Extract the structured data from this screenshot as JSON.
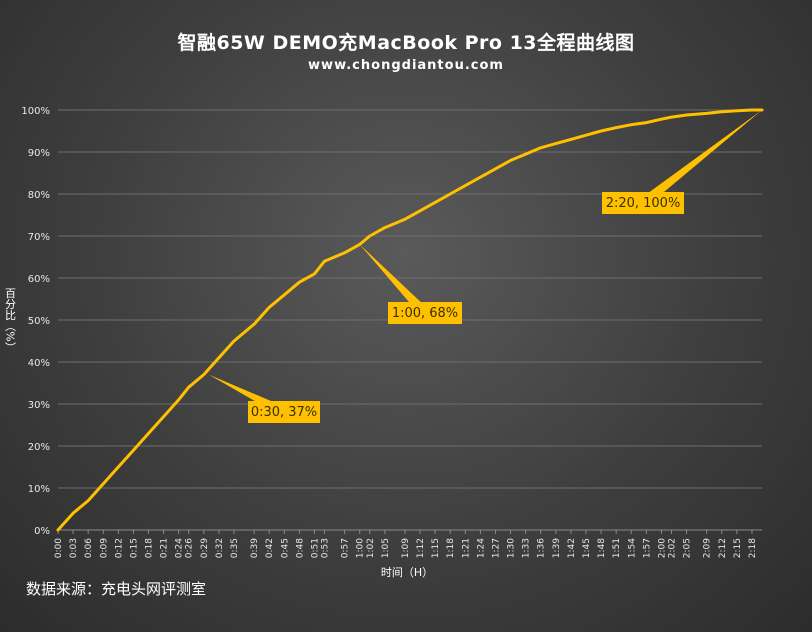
{
  "chart_data": {
    "type": "line",
    "title": "智融65W DEMO充MacBook Pro 13全程曲线图",
    "subtitle": "www.chongdiantou.com",
    "xlabel": "时间（H）",
    "ylabel": "百分比（%）",
    "ylim": [
      0,
      100
    ],
    "y_ticks": [
      "0%",
      "10%",
      "20%",
      "30%",
      "40%",
      "50%",
      "60%",
      "70%",
      "80%",
      "90%",
      "100%"
    ],
    "x_ticks": [
      "0:00",
      "0:03",
      "0:06",
      "0:09",
      "0:12",
      "0:15",
      "0:18",
      "0:21",
      "0:24",
      "0:26",
      "0:29",
      "0:32",
      "0:35",
      "0:39",
      "0:42",
      "0:45",
      "0:48",
      "0:51",
      "0:53",
      "0:57",
      "1:00",
      "1:02",
      "1:05",
      "1:09",
      "1:12",
      "1:15",
      "1:18",
      "1:21",
      "1:24",
      "1:27",
      "1:30",
      "1:33",
      "1:36",
      "1:39",
      "1:42",
      "1:45",
      "1:48",
      "1:51",
      "1:54",
      "1:57",
      "2:00",
      "2:02",
      "2:05",
      "2:09",
      "2:12",
      "2:15",
      "2:18"
    ],
    "grid": true,
    "series": [
      {
        "color": "#ffc000",
        "x": [
          "0:00",
          "0:03",
          "0:06",
          "0:09",
          "0:12",
          "0:15",
          "0:18",
          "0:21",
          "0:24",
          "0:26",
          "0:29",
          "0:32",
          "0:35",
          "0:39",
          "0:42",
          "0:45",
          "0:48",
          "0:51",
          "0:53",
          "0:57",
          "1:00",
          "1:02",
          "1:05",
          "1:09",
          "1:12",
          "1:15",
          "1:18",
          "1:21",
          "1:24",
          "1:27",
          "1:30",
          "1:33",
          "1:36",
          "1:39",
          "1:42",
          "1:45",
          "1:48",
          "1:51",
          "1:54",
          "1:57",
          "2:00",
          "2:02",
          "2:05",
          "2:09",
          "2:12",
          "2:15",
          "2:18",
          "2:20"
        ],
        "values": [
          0,
          4,
          7,
          11,
          15,
          19,
          23,
          27,
          31,
          34,
          37,
          41,
          45,
          49,
          53,
          56,
          59,
          61,
          64,
          66,
          68,
          70,
          72,
          74,
          76,
          78,
          80,
          82,
          84,
          86,
          88,
          89.5,
          91,
          92,
          93,
          94,
          95,
          95.8,
          96.5,
          97,
          97.8,
          98.3,
          98.8,
          99.2,
          99.6,
          99.8,
          100,
          100
        ]
      }
    ],
    "annotations": [
      {
        "label": "0:30, 37%",
        "x": "0:30",
        "y": 37
      },
      {
        "label": "1:00, 68%",
        "x": "1:00",
        "y": 68
      },
      {
        "label": "2:20, 100%",
        "x": "2:20",
        "y": 100
      }
    ]
  },
  "footer": {
    "source": "数据来源：充电头网评测室"
  }
}
